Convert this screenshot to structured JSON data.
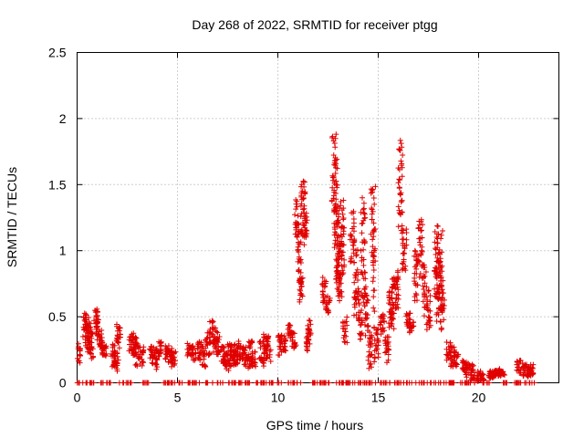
{
  "chart_data": {
    "type": "scatter",
    "title": "Day 268 of 2022, SRMTID for receiver ptgg",
    "xlabel": "GPS time / hours",
    "ylabel": "SRMTID / TECUs",
    "xlim": [
      0,
      24
    ],
    "ylim": [
      0,
      2.5
    ],
    "x_ticks": [
      0,
      5,
      10,
      15,
      20
    ],
    "x_tick_labels": [
      "0",
      "5",
      "10",
      "15",
      "20"
    ],
    "y_ticks": [
      0,
      0.5,
      1,
      1.5,
      2,
      2.5
    ],
    "y_tick_labels": [
      "0",
      "0.5",
      "1",
      "1.5",
      "2",
      "2.5"
    ],
    "grid": true,
    "marker": "+",
    "color": "#e00000",
    "series": [
      {
        "name": "SRMTID",
        "segments": [
          [
            0.05,
            0.22,
            0.08
          ],
          [
            0.4,
            0.44,
            0.1
          ],
          [
            0.5,
            0.38,
            0.12
          ],
          [
            0.6,
            0.33,
            0.12
          ],
          [
            0.7,
            0.28,
            0.1
          ],
          [
            0.95,
            0.5,
            0.06
          ],
          [
            1.05,
            0.4,
            0.08
          ],
          [
            1.2,
            0.32,
            0.08
          ],
          [
            1.35,
            0.26,
            0.06
          ],
          [
            1.8,
            0.22,
            0.1
          ],
          [
            1.95,
            0.16,
            0.08
          ],
          [
            2.05,
            0.36,
            0.1
          ],
          [
            2.7,
            0.3,
            0.08
          ],
          [
            2.85,
            0.27,
            0.1
          ],
          [
            3.0,
            0.24,
            0.12
          ],
          [
            3.2,
            0.2,
            0.08
          ],
          [
            3.7,
            0.22,
            0.08
          ],
          [
            3.9,
            0.18,
            0.08
          ],
          [
            4.1,
            0.26,
            0.06
          ],
          [
            4.5,
            0.22,
            0.06
          ],
          [
            4.65,
            0.2,
            0.06
          ],
          [
            4.8,
            0.18,
            0.06
          ],
          [
            5.6,
            0.26,
            0.06
          ],
          [
            5.8,
            0.22,
            0.06
          ],
          [
            6.1,
            0.24,
            0.08
          ],
          [
            6.3,
            0.2,
            0.08
          ],
          [
            6.5,
            0.3,
            0.1
          ],
          [
            6.7,
            0.38,
            0.1
          ],
          [
            6.9,
            0.33,
            0.1
          ],
          [
            7.05,
            0.28,
            0.08
          ],
          [
            7.3,
            0.2,
            0.08
          ],
          [
            7.45,
            0.16,
            0.08
          ],
          [
            7.6,
            0.22,
            0.1
          ],
          [
            7.75,
            0.25,
            0.08
          ],
          [
            7.9,
            0.19,
            0.06
          ],
          [
            8.05,
            0.24,
            0.08
          ],
          [
            8.3,
            0.2,
            0.08
          ],
          [
            8.5,
            0.16,
            0.06
          ],
          [
            8.65,
            0.24,
            0.08
          ],
          [
            8.8,
            0.18,
            0.06
          ],
          [
            9.2,
            0.22,
            0.1
          ],
          [
            9.4,
            0.28,
            0.1
          ],
          [
            9.55,
            0.26,
            0.1
          ],
          [
            10.1,
            0.28,
            0.08
          ],
          [
            10.3,
            0.3,
            0.06
          ],
          [
            10.6,
            0.38,
            0.06
          ],
          [
            10.8,
            0.32,
            0.06
          ],
          [
            10.95,
            1.25,
            0.15
          ],
          [
            11.05,
            0.95,
            0.2
          ],
          [
            11.15,
            0.7,
            0.1
          ],
          [
            11.25,
            1.3,
            0.3
          ],
          [
            11.35,
            1.2,
            0.12
          ],
          [
            11.5,
            0.3,
            0.06
          ],
          [
            11.6,
            0.42,
            0.06
          ],
          [
            12.3,
            0.7,
            0.1
          ],
          [
            12.5,
            0.6,
            0.08
          ],
          [
            12.8,
            1.6,
            0.3
          ],
          [
            12.9,
            1.3,
            0.4
          ],
          [
            13.0,
            1.0,
            0.35
          ],
          [
            13.1,
            0.9,
            0.3
          ],
          [
            13.2,
            1.1,
            0.3
          ],
          [
            13.35,
            0.4,
            0.1
          ],
          [
            13.7,
            1.1,
            0.2
          ],
          [
            13.9,
            0.8,
            0.3
          ],
          [
            14.1,
            0.5,
            0.2
          ],
          [
            14.25,
            1.0,
            0.4
          ],
          [
            14.4,
            0.55,
            0.2
          ],
          [
            14.6,
            0.25,
            0.15
          ],
          [
            14.75,
            1.0,
            0.5
          ],
          [
            14.9,
            0.3,
            0.15
          ],
          [
            15.2,
            0.45,
            0.1
          ],
          [
            15.45,
            0.25,
            0.1
          ],
          [
            15.6,
            0.55,
            0.15
          ],
          [
            15.75,
            0.6,
            0.2
          ],
          [
            15.9,
            0.7,
            0.15
          ],
          [
            16.1,
            1.5,
            0.35
          ],
          [
            16.3,
            1.05,
            0.2
          ],
          [
            16.5,
            0.48,
            0.05
          ],
          [
            16.65,
            0.42,
            0.05
          ],
          [
            16.9,
            0.8,
            0.2
          ],
          [
            17.1,
            1.0,
            0.25
          ],
          [
            17.3,
            0.7,
            0.2
          ],
          [
            17.5,
            0.55,
            0.15
          ],
          [
            17.9,
            0.9,
            0.3
          ],
          [
            18.0,
            0.7,
            0.25
          ],
          [
            18.1,
            0.85,
            0.3
          ],
          [
            18.2,
            0.6,
            0.2
          ],
          [
            18.5,
            0.25,
            0.08
          ],
          [
            18.7,
            0.2,
            0.08
          ],
          [
            18.9,
            0.18,
            0.06
          ],
          [
            19.3,
            0.12,
            0.06
          ],
          [
            19.5,
            0.1,
            0.06
          ],
          [
            19.7,
            0.08,
            0.06
          ],
          [
            20.0,
            0.05,
            0.04
          ],
          [
            20.15,
            0.04,
            0.03
          ],
          [
            20.6,
            0.06,
            0.03
          ],
          [
            20.8,
            0.07,
            0.03
          ],
          [
            21.0,
            0.08,
            0.03
          ],
          [
            21.2,
            0.07,
            0.02
          ],
          [
            22.0,
            0.12,
            0.05
          ],
          [
            22.3,
            0.1,
            0.05
          ],
          [
            22.5,
            0.08,
            0.04
          ],
          [
            22.65,
            0.1,
            0.04
          ]
        ],
        "zero_ranges": [
          [
            0.0,
            0.85
          ],
          [
            1.15,
            1.7
          ],
          [
            2.1,
            2.7
          ],
          [
            3.25,
            3.6
          ],
          [
            4.15,
            4.9
          ],
          [
            5.0,
            6.1
          ],
          [
            6.4,
            7.3
          ],
          [
            7.5,
            8.6
          ],
          [
            8.9,
            10.2
          ],
          [
            10.5,
            11.2
          ],
          [
            11.6,
            12.6
          ],
          [
            12.8,
            13.6
          ],
          [
            13.4,
            14.9
          ],
          [
            15.0,
            15.6
          ],
          [
            15.8,
            17.5
          ],
          [
            17.6,
            19.0
          ],
          [
            19.1,
            19.9
          ],
          [
            20.2,
            20.6
          ],
          [
            21.2,
            22.1
          ],
          [
            22.3,
            22.8
          ]
        ],
        "count": 1800,
        "seed": 268
      }
    ]
  }
}
